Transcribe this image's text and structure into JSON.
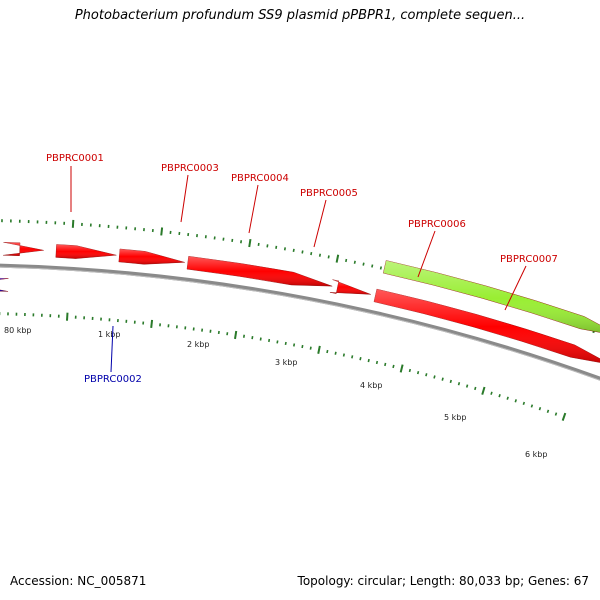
{
  "title": "Photobacterium profundum SS9 plasmid pPBPR1, complete sequen...",
  "accession": "Accession: NC_005871",
  "summary": "Topology: circular; Length: 80,033 bp; Genes: 67",
  "colors": {
    "backbone": "#8a8a8a",
    "forward_gene": "#ff0000",
    "reverse_gene": "#0000ff",
    "highlight_gene": "#99ee33",
    "tick": "#2a7a2a",
    "forward_label": "#cc0000",
    "reverse_label": "#0000aa"
  },
  "map": {
    "scale_labels": [
      "80 kbp",
      "1 kbp",
      "2 kbp",
      "3 kbp",
      "4 kbp",
      "5 kbp",
      "6 kbp"
    ],
    "genes": [
      {
        "name": "PBPRC0001",
        "strand": "forward",
        "label_shown": true
      },
      {
        "name": "PBPRC0002",
        "strand": "reverse",
        "label_shown": true
      },
      {
        "name": "PBPRC0003",
        "strand": "forward",
        "label_shown": true
      },
      {
        "name": "PBPRC0004",
        "strand": "forward",
        "label_shown": true
      },
      {
        "name": "PBPRC0005",
        "strand": "forward",
        "label_shown": true
      },
      {
        "name": "PBPRC0006",
        "strand": "forward",
        "label_shown": true
      },
      {
        "name": "PBPRC0007",
        "strand": "forward",
        "label_shown": true
      }
    ]
  }
}
